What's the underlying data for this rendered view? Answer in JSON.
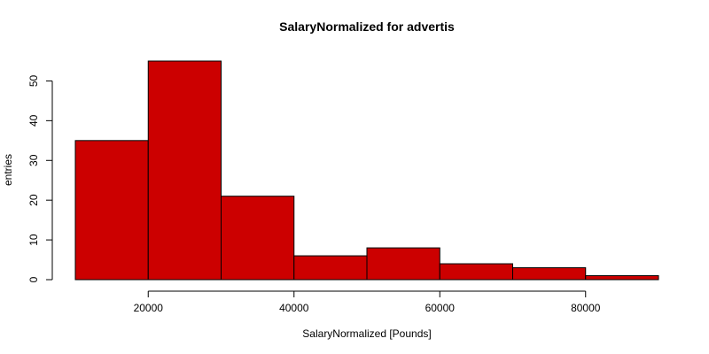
{
  "chart_data": {
    "type": "bar",
    "subtype": "histogram",
    "title": "SalaryNormalized for advertis",
    "xlabel": "SalaryNormalized [Pounds]",
    "ylabel": "entries",
    "bins": [
      {
        "from": 10000,
        "to": 20000,
        "count": 35
      },
      {
        "from": 20000,
        "to": 30000,
        "count": 55
      },
      {
        "from": 30000,
        "to": 40000,
        "count": 21
      },
      {
        "from": 40000,
        "to": 50000,
        "count": 6
      },
      {
        "from": 50000,
        "to": 60000,
        "count": 8
      },
      {
        "from": 60000,
        "to": 70000,
        "count": 4
      },
      {
        "from": 70000,
        "to": 80000,
        "count": 3
      },
      {
        "from": 80000,
        "to": 90000,
        "count": 1
      }
    ],
    "xlim": [
      10000,
      90000
    ],
    "ylim": [
      0,
      55
    ],
    "x_ticks": [
      20000,
      40000,
      60000,
      80000
    ],
    "y_ticks": [
      0,
      10,
      20,
      30,
      40,
      50
    ],
    "bar_color": "#cc0000",
    "grid": false,
    "legend": "none"
  }
}
